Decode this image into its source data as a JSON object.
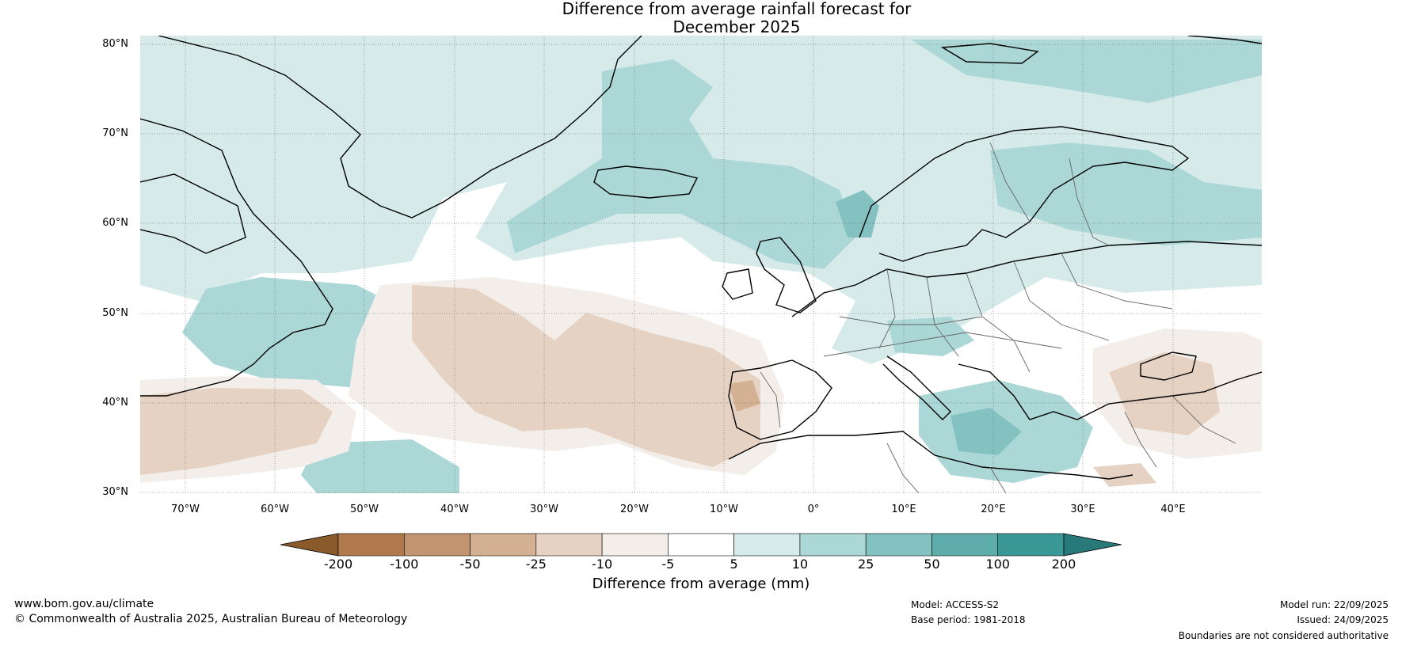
{
  "title": {
    "line1": "Difference from average rainfall forecast for",
    "line2": "December 2025"
  },
  "map": {
    "lat_labels": [
      "80°N",
      "70°N",
      "60°N",
      "50°N",
      "40°N",
      "30°N"
    ],
    "lon_labels": [
      "70°W",
      "60°W",
      "50°W",
      "40°W",
      "30°W",
      "20°W",
      "10°W",
      "0°",
      "10°E",
      "20°E",
      "30°E",
      "40°E"
    ],
    "extent": {
      "lon_min": -75,
      "lon_max": 50,
      "lat_min": 30,
      "lat_max": 81
    }
  },
  "colorbar": {
    "ticks": [
      "-200",
      "-100",
      "-50",
      "-25",
      "-10",
      "-5",
      "5",
      "10",
      "25",
      "50",
      "100",
      "200"
    ],
    "colors": [
      "#8b5a2b",
      "#b07a4c",
      "#c29470",
      "#d4b193",
      "#e6d2c2",
      "#f3eee9",
      "#ffffff",
      "#d6eaea",
      "#abd7d6",
      "#84c2c1",
      "#5eadac",
      "#3a9896",
      "#287a7a"
    ],
    "label": "Difference from average (mm)"
  },
  "footer": {
    "website": "www.bom.gov.au/climate",
    "copyright": "© Commonwealth of Australia 2025, Australian Bureau of Meteorology",
    "model": "Model: ACCESS-S2",
    "base_period": "Base period: 1981-2018",
    "model_run": "Model run: 22/09/2025",
    "issued": "Issued: 24/09/2025",
    "disclaimer": "Boundaries are not considered authoritative"
  }
}
